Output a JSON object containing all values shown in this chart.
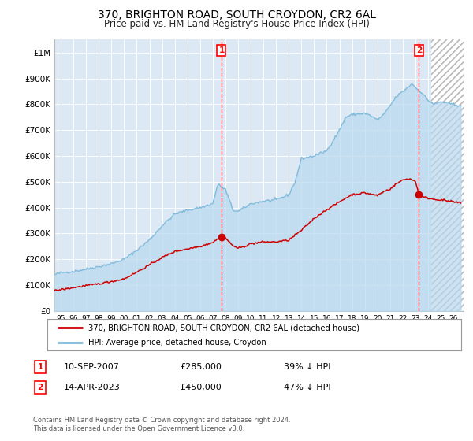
{
  "title": "370, BRIGHTON ROAD, SOUTH CROYDON, CR2 6AL",
  "subtitle": "Price paid vs. HM Land Registry's House Price Index (HPI)",
  "title_fontsize": 10,
  "subtitle_fontsize": 8.5,
  "background_color": "#ffffff",
  "plot_bg_color": "#dce9f5",
  "hpi_color": "#7db8d8",
  "hpi_fill_color": "#b8d8ee",
  "price_color": "#cc0000",
  "annotation1_date": 2007.69,
  "annotation1_price": 285000,
  "annotation2_date": 2023.28,
  "annotation2_price": 450000,
  "ylim": [
    0,
    1050000
  ],
  "xlim_start": 1994.5,
  "xlim_end": 2026.8,
  "hatch_start": 2024.25,
  "legend_label_price": "370, BRIGHTON ROAD, SOUTH CROYDON, CR2 6AL (detached house)",
  "legend_label_hpi": "HPI: Average price, detached house, Croydon",
  "footer_text": "Contains HM Land Registry data © Crown copyright and database right 2024.\nThis data is licensed under the Open Government Licence v3.0.",
  "note1_date": "10-SEP-2007",
  "note1_price": "£285,000",
  "note1_hpi": "39% ↓ HPI",
  "note2_date": "14-APR-2023",
  "note2_price": "£450,000",
  "note2_hpi": "47% ↓ HPI",
  "yticks": [
    0,
    100000,
    200000,
    300000,
    400000,
    500000,
    600000,
    700000,
    800000,
    900000,
    1000000
  ],
  "ytick_labels": [
    "£0",
    "£100K",
    "£200K",
    "£300K",
    "£400K",
    "£500K",
    "£600K",
    "£700K",
    "£800K",
    "£900K",
    "£1M"
  ],
  "xtick_years": [
    1995,
    1996,
    1997,
    1998,
    1999,
    2000,
    2001,
    2002,
    2003,
    2004,
    2005,
    2006,
    2007,
    2008,
    2009,
    2010,
    2011,
    2012,
    2013,
    2014,
    2015,
    2016,
    2017,
    2018,
    2019,
    2020,
    2021,
    2022,
    2023,
    2024,
    2025,
    2026
  ]
}
